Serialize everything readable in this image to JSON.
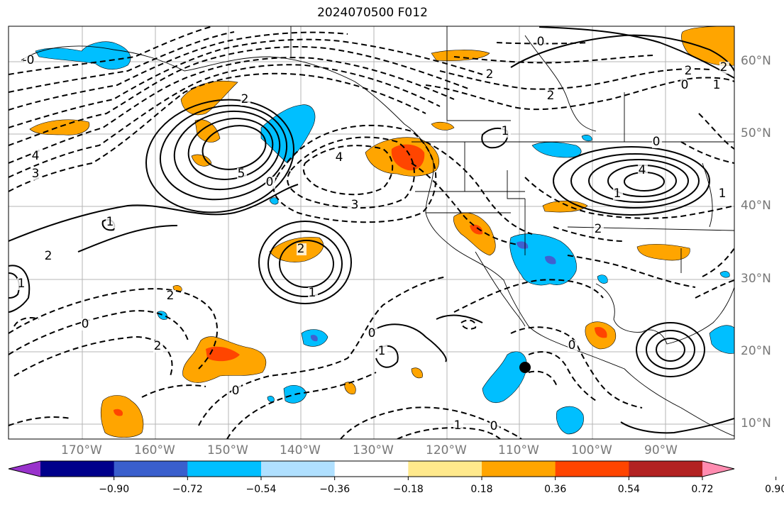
{
  "title": "2024070500 F012",
  "map": {
    "lon_range": [
      -180,
      -80
    ],
    "lat_range": [
      8,
      65
    ],
    "gridlines": true,
    "fill_colors": {
      "pos_036": "#ffa500",
      "pos_054": "#ff4500",
      "neg_036": "#00bfff",
      "neg_054": "#4060d0"
    },
    "contour_labels": [
      {
        "text": "0"
      },
      {
        "text": "2"
      },
      {
        "text": "2"
      },
      {
        "text": "-0"
      },
      {
        "text": "0"
      },
      {
        "text": "1"
      },
      {
        "text": "2"
      },
      {
        "text": "4"
      },
      {
        "text": "3"
      },
      {
        "text": "5"
      },
      {
        "text": "2"
      },
      {
        "text": "0"
      },
      {
        "text": "4"
      },
      {
        "text": "3"
      },
      {
        "text": "4"
      },
      {
        "text": "1"
      },
      {
        "text": "1"
      },
      {
        "text": "2"
      },
      {
        "text": "1"
      },
      {
        "text": "2"
      },
      {
        "text": "1"
      },
      {
        "text": "2"
      },
      {
        "text": "0"
      },
      {
        "text": "0"
      },
      {
        "text": "2"
      },
      {
        "text": "1"
      },
      {
        "text": "0"
      },
      {
        "text": "0"
      },
      {
        "text": "1"
      },
      {
        "text": "1"
      },
      {
        "text": "0"
      },
      {
        "text": "2"
      },
      {
        "text": "0"
      },
      {
        "text": "1"
      },
      {
        "text": "2"
      }
    ],
    "marker": "black-dot"
  },
  "lon_labels": [
    "170°W",
    "160°W",
    "150°W",
    "140°W",
    "130°W",
    "120°W",
    "110°W",
    "100°W",
    "90°W"
  ],
  "lat_labels": [
    "60°N",
    "50°N",
    "40°N",
    "30°N",
    "20°N",
    "10°N"
  ],
  "colorbar": {
    "colors": [
      "#9932cc",
      "#00008b",
      "#3a5fcd",
      "#00bfff",
      "#b0e0ff",
      "#ffffff",
      "#ffe98c",
      "#ffa500",
      "#ff4500",
      "#b22222",
      "#ff8cb0"
    ],
    "labels": [
      "−0.90",
      "−0.72",
      "−0.54",
      "−0.36",
      "−0.18",
      "0.18",
      "0.36",
      "0.54",
      "0.72",
      "0.90"
    ]
  }
}
